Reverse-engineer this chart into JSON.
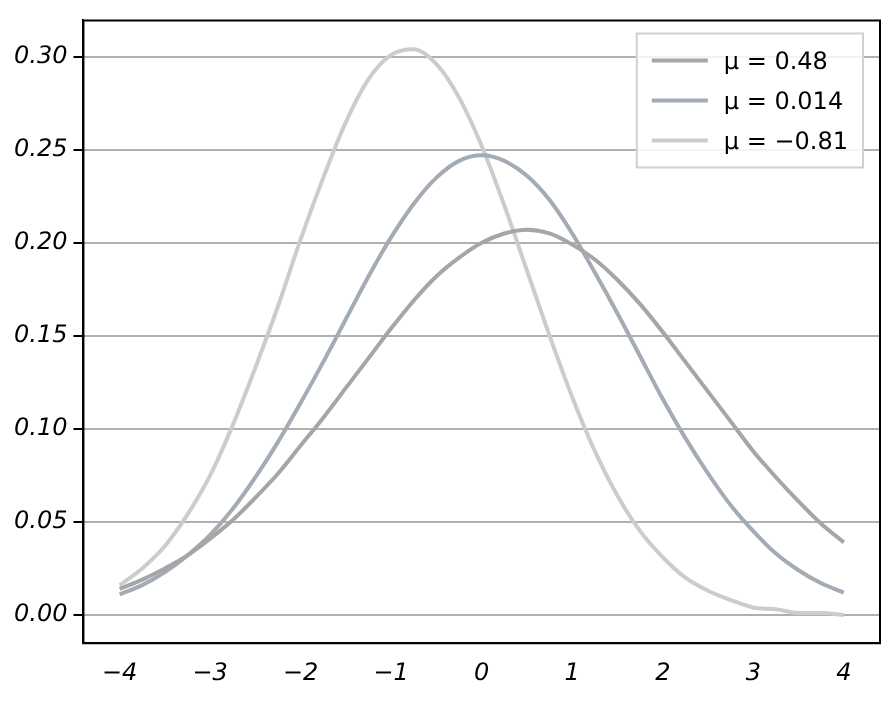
{
  "chart_data": {
    "type": "line",
    "x": [
      -4,
      -3.75,
      -3.5,
      -3.25,
      -3,
      -2.75,
      -2.5,
      -2.25,
      -2,
      -1.75,
      -1.5,
      -1.25,
      -1,
      -0.75,
      -0.5,
      -0.25,
      0,
      0.25,
      0.5,
      0.75,
      1,
      1.25,
      1.5,
      1.75,
      2,
      2.25,
      2.5,
      2.75,
      3,
      3.25,
      3.5,
      3.75,
      4
    ],
    "series": [
      {
        "name": "μ = 0.48",
        "color": "#a6a6a6",
        "values": [
          0.014,
          0.019,
          0.025,
          0.032,
          0.041,
          0.051,
          0.063,
          0.076,
          0.091,
          0.106,
          0.122,
          0.138,
          0.154,
          0.169,
          0.182,
          0.192,
          0.2,
          0.205,
          0.207,
          0.205,
          0.199,
          0.191,
          0.18,
          0.167,
          0.152,
          0.136,
          0.12,
          0.104,
          0.088,
          0.074,
          0.061,
          0.049,
          0.039
        ]
      },
      {
        "name": "μ = 0.014",
        "color": "#a3abb5",
        "values": [
          0.011,
          0.016,
          0.023,
          0.032,
          0.043,
          0.057,
          0.074,
          0.093,
          0.114,
          0.136,
          0.159,
          0.182,
          0.203,
          0.221,
          0.235,
          0.244,
          0.247,
          0.244,
          0.236,
          0.223,
          0.205,
          0.184,
          0.162,
          0.139,
          0.116,
          0.095,
          0.076,
          0.059,
          0.045,
          0.033,
          0.024,
          0.017,
          0.012
        ]
      },
      {
        "name": "μ = −0.81",
        "color": "#cccccc",
        "values": [
          0.016,
          0.025,
          0.037,
          0.054,
          0.075,
          0.102,
          0.133,
          0.166,
          0.202,
          0.235,
          0.265,
          0.288,
          0.301,
          0.304,
          0.296,
          0.278,
          0.252,
          0.22,
          0.185,
          0.15,
          0.117,
          0.088,
          0.064,
          0.045,
          0.031,
          0.02,
          0.013,
          0.008,
          0.004,
          0.003,
          0.001,
          0.001,
          0.0
        ]
      }
    ],
    "xlim": [
      -4.4,
      4.4
    ],
    "xticks": [
      {
        "value": -4,
        "label": "−4"
      },
      {
        "value": -3,
        "label": "−3"
      },
      {
        "value": -2,
        "label": "−2"
      },
      {
        "value": -1,
        "label": "−1"
      },
      0,
      1,
      2,
      3,
      4
    ],
    "ylim": [
      -0.0152,
      0.3195
    ],
    "yticks": [
      {
        "value": 0,
        "label": "0.00"
      },
      {
        "value": 0.05,
        "label": "0.05"
      },
      {
        "value": 0.1,
        "label": "0.10"
      },
      {
        "value": 0.15,
        "label": "0.15"
      },
      {
        "value": 0.2,
        "label": "0.20"
      },
      {
        "value": 0.25,
        "label": "0.25"
      },
      {
        "value": 0.3,
        "label": "0.30"
      }
    ],
    "grid": "y",
    "legend": "top right",
    "marker": "none",
    "line_style": "solid"
  }
}
